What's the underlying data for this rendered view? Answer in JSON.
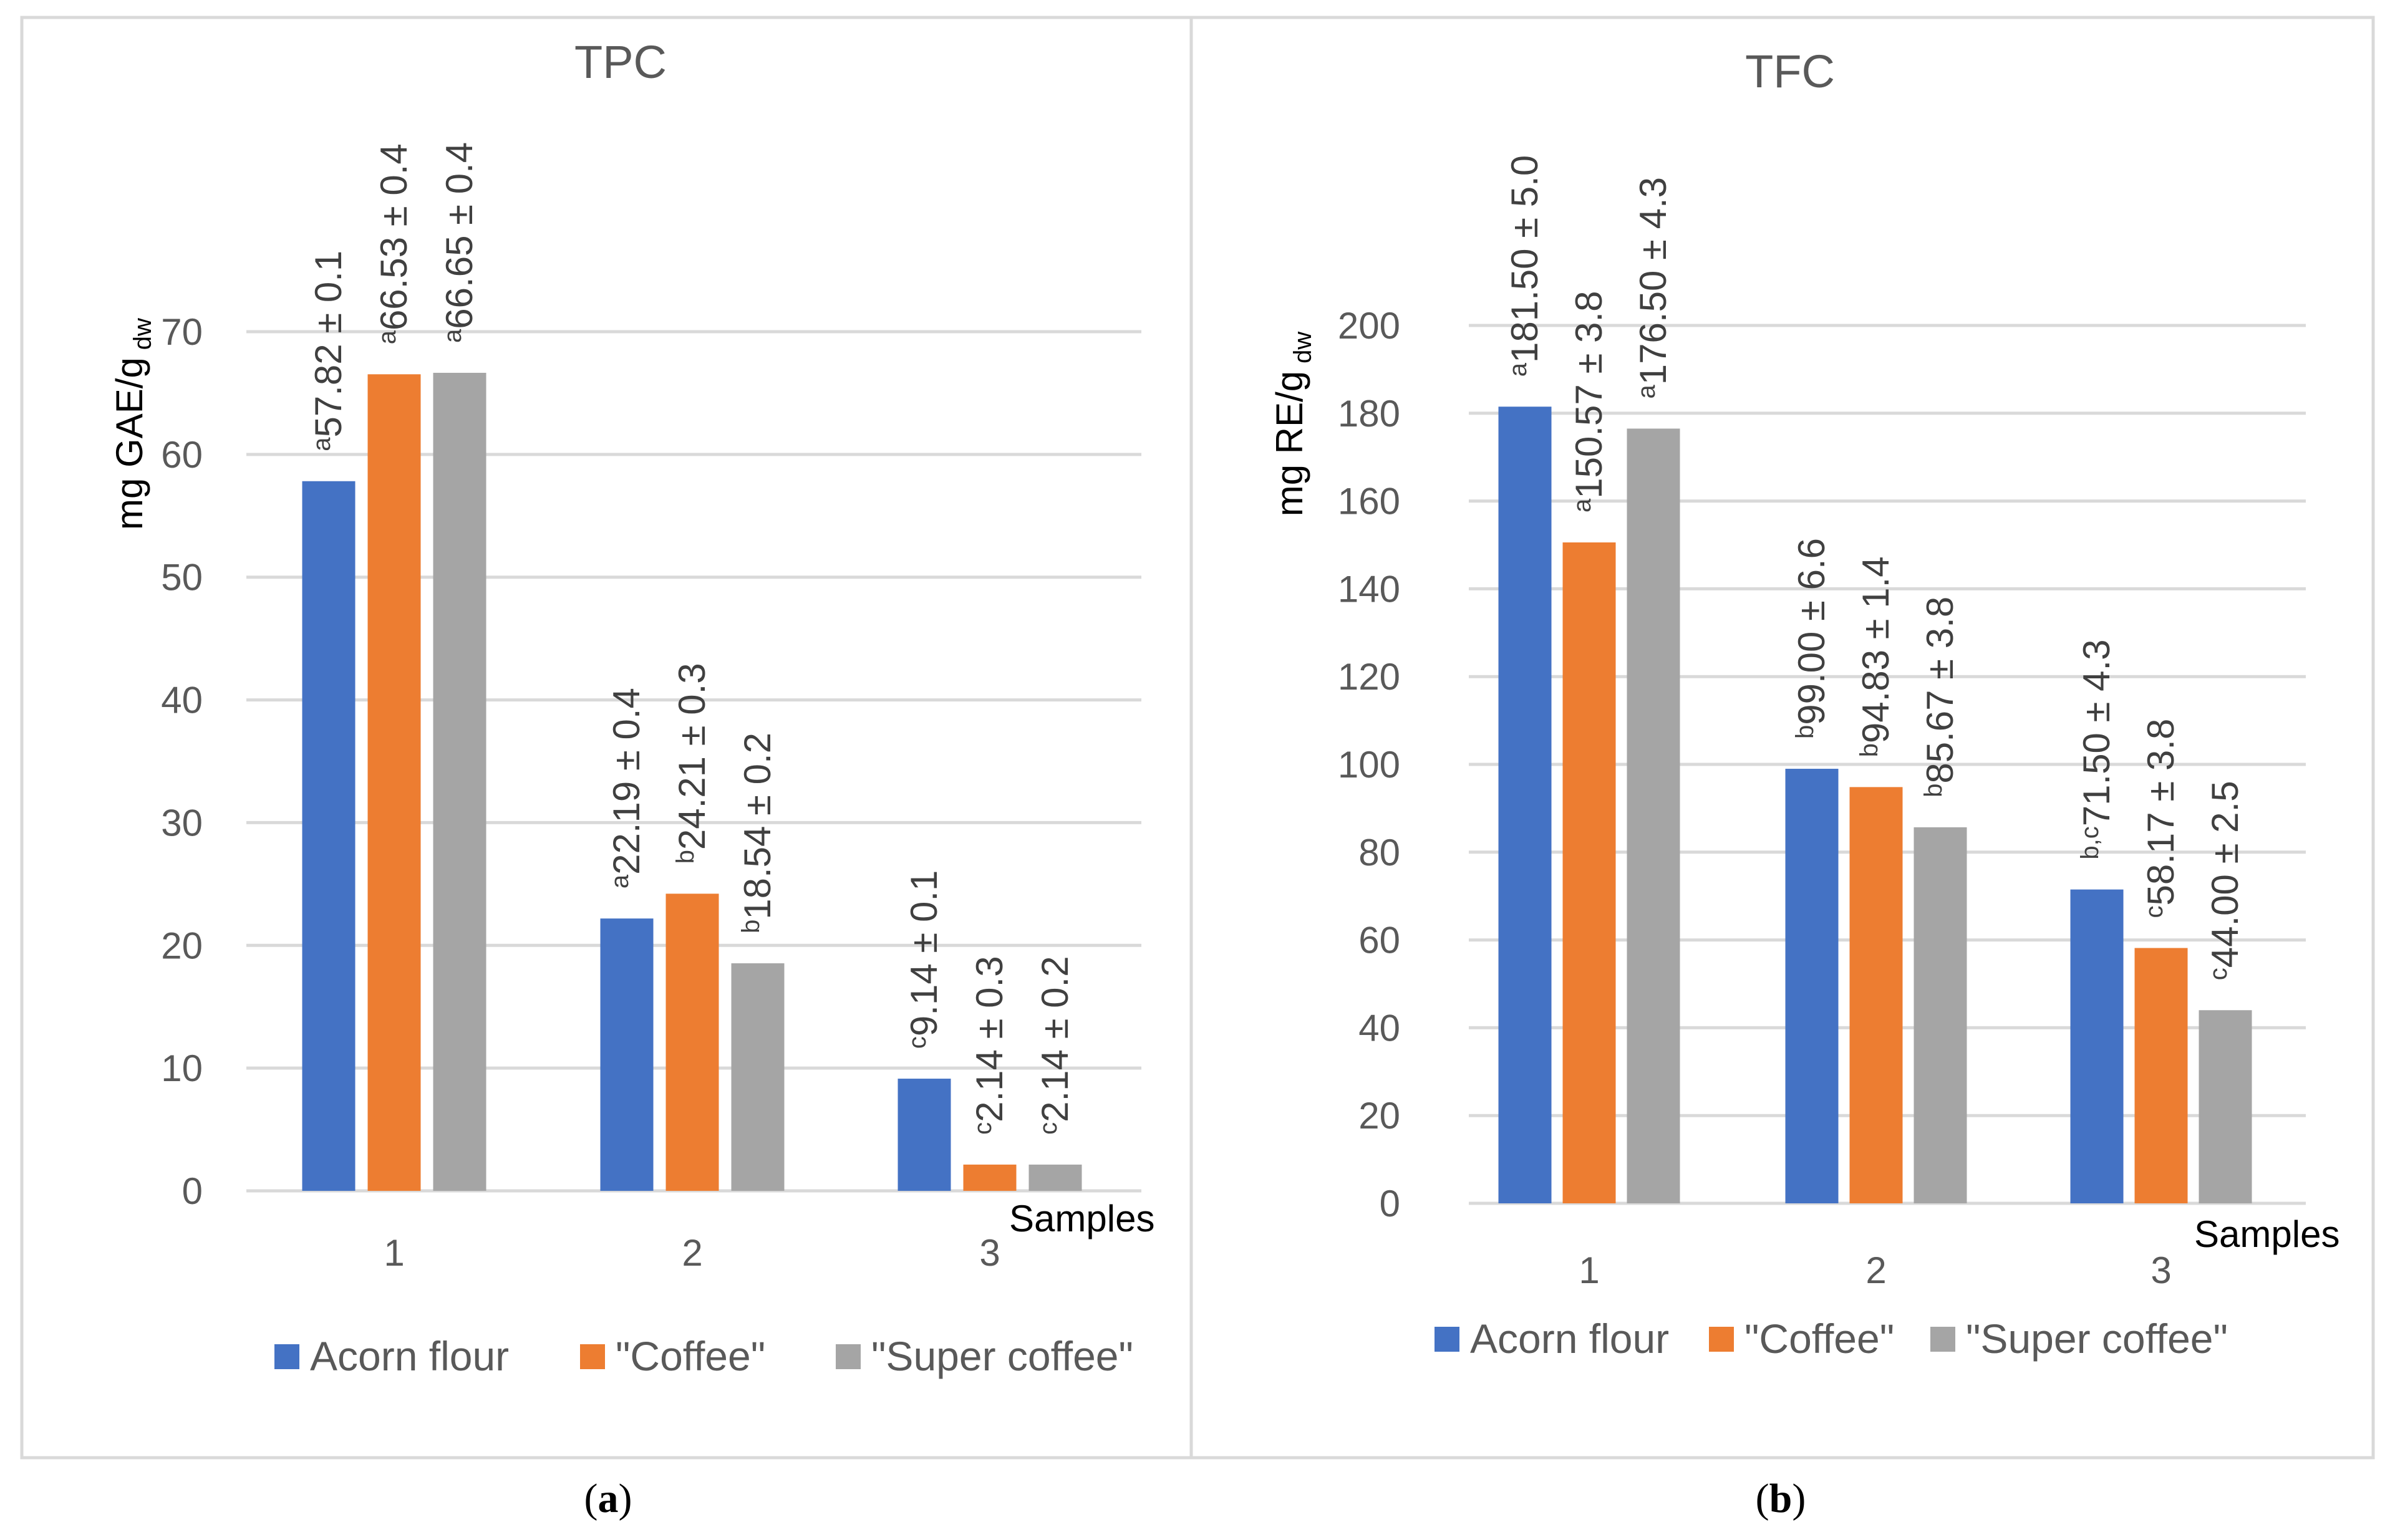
{
  "chart_data": [
    {
      "type": "bar",
      "panel_label": "a",
      "title": "TPC",
      "ylabel": "mg GAE/g",
      "ylabel_subscript": "dw",
      "xlabel": "Samples",
      "ylim": [
        0,
        70
      ],
      "yticks": [
        0,
        10,
        20,
        30,
        40,
        50,
        60,
        70
      ],
      "categories": [
        "1",
        "2",
        "3"
      ],
      "series": [
        {
          "name": "Acorn flour",
          "color": "#4472c4",
          "values": [
            57.82,
            22.19,
            9.14
          ],
          "labels": [
            [
              "a",
              "57.82 ± 0.1"
            ],
            [
              "a",
              "22.19 ± 0.4"
            ],
            [
              "c",
              "9.14 ± 0.1"
            ]
          ]
        },
        {
          "name": "\"Coffee\"",
          "color": "#ed7d31",
          "values": [
            66.53,
            24.21,
            2.14
          ],
          "labels": [
            [
              "a",
              "66.53 ± 0.4"
            ],
            [
              "b",
              "24.21 ± 0.3"
            ],
            [
              "c",
              "2.14 ± 0.3"
            ]
          ]
        },
        {
          "name": "\"Super coffee\"",
          "color": "#a5a5a5",
          "values": [
            66.65,
            18.54,
            2.14
          ],
          "labels": [
            [
              "a",
              "66.65 ± 0.4"
            ],
            [
              "b",
              "18.54 ± 0.2"
            ],
            [
              "c",
              "2.14 ± 0.2"
            ]
          ]
        }
      ],
      "legend": "bottom"
    },
    {
      "type": "bar",
      "panel_label": "b",
      "title": "TFC",
      "ylabel": "mg RE/g",
      "ylabel_subscript": "dw",
      "xlabel": "Samples",
      "ylim": [
        0,
        200
      ],
      "yticks": [
        0,
        20,
        40,
        60,
        80,
        100,
        120,
        140,
        160,
        180,
        200
      ],
      "categories": [
        "1",
        "2",
        "3"
      ],
      "series": [
        {
          "name": "Acorn flour",
          "color": "#4472c4",
          "values": [
            181.5,
            99.0,
            71.5
          ],
          "labels": [
            [
              "a",
              "181.50 ± 5.0"
            ],
            [
              "b",
              "99.00 ± 6.6"
            ],
            [
              "b,c",
              "71.50 ± 4.3"
            ]
          ]
        },
        {
          "name": "\"Coffee\"",
          "color": "#ed7d31",
          "values": [
            150.57,
            94.83,
            58.17
          ],
          "labels": [
            [
              "a",
              "150.57 ± 3.8"
            ],
            [
              "b",
              "94.83 ± 1.4"
            ],
            [
              "c",
              "58.17 ± 3.8"
            ]
          ]
        },
        {
          "name": "\"Super coffee\"",
          "color": "#a5a5a5",
          "values": [
            176.5,
            85.67,
            44.0
          ],
          "labels": [
            [
              "a",
              "176.50 ± 4.3"
            ],
            [
              "b",
              "85.67 ± 3.8"
            ],
            [
              "c",
              "44.00 ± 2.5"
            ]
          ]
        }
      ],
      "legend": "bottom"
    }
  ]
}
